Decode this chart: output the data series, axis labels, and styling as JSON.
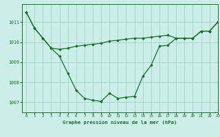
{
  "title": "Graphe pression niveau de la mer (hPa)",
  "background_color": "#cceee8",
  "grid_color": "#99ccbb",
  "line_color": "#1a6b2a",
  "marker_color": "#1a6b2a",
  "xlim": [
    -0.5,
    23
  ],
  "ylim": [
    1006.5,
    1011.9
  ],
  "yticks": [
    1007,
    1008,
    1009,
    1010,
    1011
  ],
  "xticks": [
    0,
    1,
    2,
    3,
    4,
    5,
    6,
    7,
    8,
    9,
    10,
    11,
    12,
    13,
    14,
    15,
    16,
    17,
    18,
    19,
    20,
    21,
    22,
    23
  ],
  "upper_x": [
    0,
    1,
    2,
    3,
    4,
    5,
    6,
    7,
    8,
    9,
    10,
    11,
    12,
    13,
    14,
    15,
    16,
    17,
    18,
    19,
    20,
    21,
    22,
    23
  ],
  "upper_y": [
    1011.5,
    1010.7,
    1010.2,
    1009.7,
    1009.65,
    1009.7,
    1009.8,
    1009.85,
    1009.9,
    1009.95,
    1010.05,
    1010.1,
    1010.15,
    1010.2,
    1010.2,
    1010.25,
    1010.3,
    1010.35,
    1010.2,
    1010.2,
    1010.2,
    1010.55,
    1010.55,
    1011.0
  ],
  "lower_x": [
    0,
    1,
    2,
    3,
    4,
    5,
    6,
    7,
    8,
    9,
    10,
    11,
    12,
    13,
    14,
    15,
    16,
    17,
    18,
    19,
    20,
    21,
    22,
    23
  ],
  "lower_y": [
    1011.5,
    1010.7,
    1010.2,
    1009.7,
    1009.3,
    1008.45,
    1007.6,
    1007.2,
    1007.1,
    1007.05,
    1007.45,
    1007.2,
    1007.25,
    1007.3,
    1008.3,
    1008.85,
    1009.8,
    1009.85,
    1010.2,
    1010.2,
    1010.2,
    1010.55,
    1010.55,
    1011.0
  ]
}
